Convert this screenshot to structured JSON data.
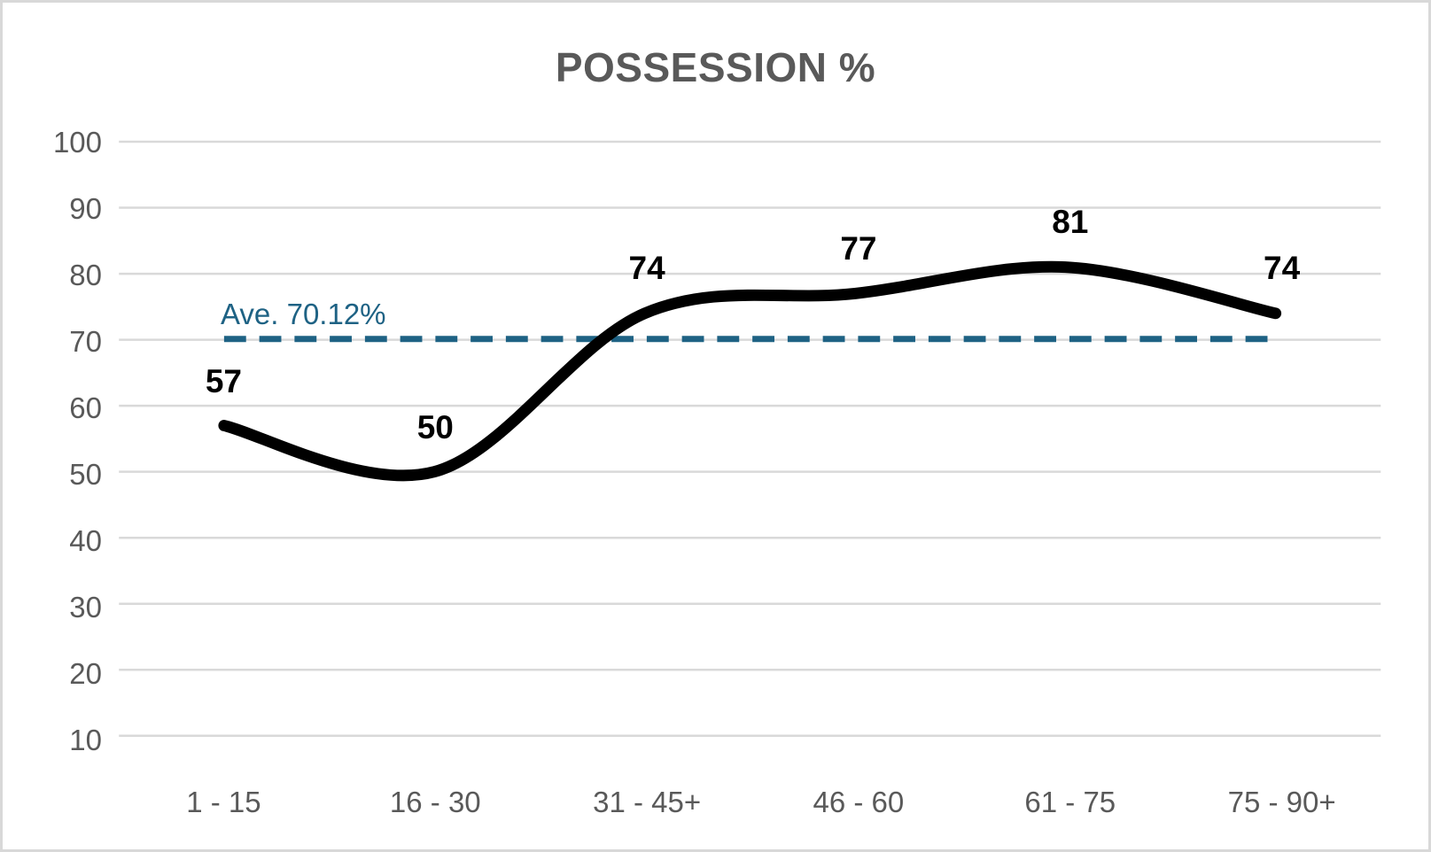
{
  "chart_data": {
    "type": "line",
    "title": "POSSESSION %",
    "categories": [
      "1 - 15",
      "16 - 30",
      "31 - 45+",
      "46 - 60",
      "61 - 75",
      "75 - 90+"
    ],
    "series": [
      {
        "name": "Possession %",
        "values": [
          57,
          50,
          74,
          77,
          81,
          74
        ]
      }
    ],
    "data_labels": [
      "57",
      "50",
      "74",
      "77",
      "81",
      "74"
    ],
    "average_line": {
      "value": 70.12,
      "label": "Ave. 70.12%",
      "style": "dashed"
    },
    "xlabel": "",
    "ylabel": "",
    "ylim": [
      10,
      100
    ],
    "y_ticks": [
      10,
      20,
      30,
      40,
      50,
      60,
      70,
      80,
      90,
      100
    ],
    "grid": "horizontal",
    "legend": "none",
    "smooth": true,
    "colors": {
      "line": "#000000",
      "average_line": "#1e6284",
      "gridline": "#d9d9d9",
      "axis_text": "#595959",
      "title_text": "#595959",
      "data_label_text": "#000000",
      "border": "#d8d8d8",
      "background": "#ffffff"
    }
  }
}
